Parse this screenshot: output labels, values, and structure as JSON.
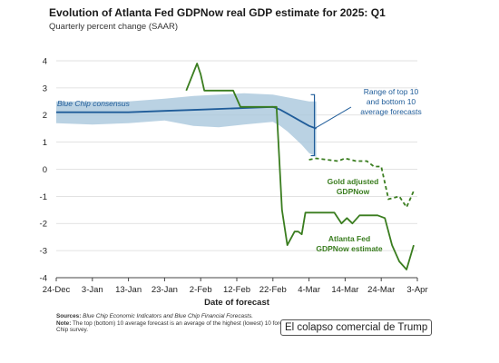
{
  "title": "Evolution of Atlanta Fed GDPNow real GDP estimate for 2025: Q1",
  "subtitle": "Quarterly percent change (SAAR)",
  "notes": {
    "sources_label": "Sources:",
    "sources_text": "Blue Chip Economic Indicators and Blue Chip Financial Forecasts.",
    "note_label": "Note:",
    "note_text": "The top (bottom) 10 average forecast is an average of the highest (lowest) 10 forecasts in the Blue Chip survey."
  },
  "caption": "El colapso comercial de Trump",
  "chart_data": {
    "type": "line",
    "title": "Evolution of Atlanta Fed GDPNow real GDP estimate for 2025: Q1",
    "subtitle": "Quarterly percent change (SAAR)",
    "xlabel": "Date of forecast",
    "ylabel": "",
    "x_tick_labels": [
      "24-Dec",
      "3-Jan",
      "13-Jan",
      "23-Jan",
      "2-Feb",
      "12-Feb",
      "22-Feb",
      "4-Mar",
      "14-Mar",
      "24-Mar",
      "3-Apr"
    ],
    "x_tick_days": [
      0,
      10,
      20,
      30,
      40,
      50,
      60,
      70,
      80,
      90,
      100
    ],
    "y_ticks": [
      -4,
      -3,
      -2,
      -1,
      0,
      1,
      2,
      3,
      4
    ],
    "xlim": [
      0,
      100
    ],
    "ylim": [
      -4,
      4.2
    ],
    "grid": "horizontal",
    "colors": {
      "blue_chip": "#1f5c99",
      "band": "#a9c7dc",
      "gdpnow": "#3a7d1f",
      "annotation": "#1f5c99"
    },
    "band": {
      "name": "Range of top 10 and bottom 10 average forecasts",
      "x": [
        0,
        10,
        20,
        30,
        38,
        45,
        52,
        60,
        62,
        64,
        66,
        68,
        70,
        72
      ],
      "upper": [
        2.5,
        2.5,
        2.5,
        2.6,
        2.7,
        2.75,
        2.8,
        2.75,
        2.7,
        2.65,
        2.6,
        2.55,
        2.5,
        2.5
      ],
      "lower": [
        1.7,
        1.65,
        1.7,
        1.8,
        1.6,
        1.55,
        1.65,
        1.75,
        1.6,
        1.4,
        1.15,
        0.9,
        0.6,
        0.45
      ]
    },
    "series": [
      {
        "name": "Blue Chip consensus",
        "x": [
          0,
          10,
          20,
          30,
          40,
          50,
          60,
          62,
          64,
          66,
          68,
          70,
          72
        ],
        "y": [
          2.1,
          2.1,
          2.1,
          2.15,
          2.2,
          2.25,
          2.3,
          2.2,
          2.05,
          1.9,
          1.75,
          1.6,
          1.5
        ]
      },
      {
        "name": "Atlanta Fed GDPNow estimate",
        "x": [
          36,
          39,
          40,
          41,
          44,
          49,
          51,
          55,
          61,
          62.5,
          64,
          66,
          67,
          68,
          69,
          71,
          73,
          77,
          79,
          80.5,
          82,
          84,
          87,
          89,
          91,
          93,
          95,
          97,
          99
        ],
        "y": [
          2.9,
          3.9,
          3.5,
          2.9,
          2.9,
          2.9,
          2.3,
          2.3,
          2.3,
          -1.5,
          -2.8,
          -2.3,
          -2.3,
          -2.4,
          -1.6,
          -1.6,
          -1.6,
          -1.6,
          -2.0,
          -1.8,
          -2.0,
          -1.7,
          -1.7,
          -1.7,
          -1.8,
          -2.8,
          -3.4,
          -3.7,
          -2.8
        ]
      },
      {
        "name": "Gold adjusted GDPNow",
        "style": "dashed",
        "x": [
          70,
          72,
          75,
          78,
          80,
          83,
          86,
          88,
          90,
          92,
          95,
          97,
          99
        ],
        "y": [
          0.35,
          0.4,
          0.35,
          0.3,
          0.4,
          0.3,
          0.3,
          0.1,
          0.1,
          -1.1,
          -1.0,
          -1.4,
          -0.8
        ]
      }
    ],
    "annotations": [
      {
        "text": "Blue Chip consensus",
        "target": "blue_chip"
      },
      {
        "text": "Range of top 10 and bottom 10 average forecasts",
        "lines": [
          "Range of top 10",
          "and bottom 10",
          "average forecasts"
        ],
        "target": "band"
      },
      {
        "text": "Gold adjusted GDPNow",
        "lines": [
          "Gold adjusted",
          "GDPNow"
        ],
        "target": "gold"
      },
      {
        "text": "Atlanta Fed GDPNow estimate",
        "lines": [
          "Atlanta Fed",
          "GDPNow estimate"
        ],
        "target": "gdpnow"
      }
    ]
  }
}
